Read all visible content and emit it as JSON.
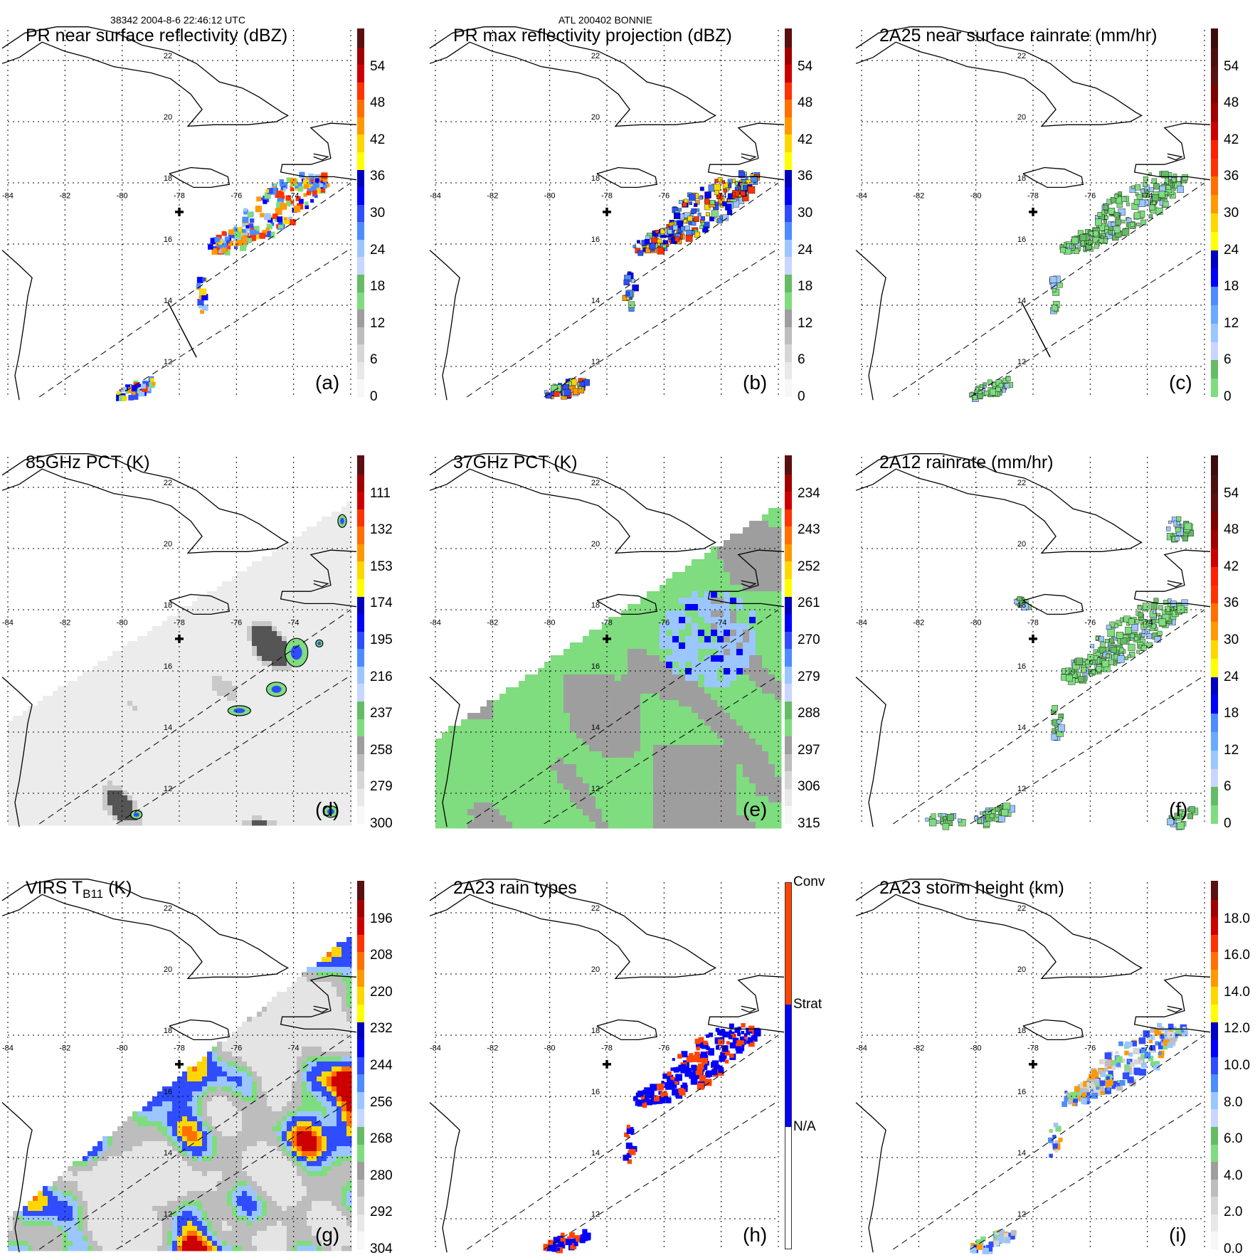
{
  "header": {
    "orbit_time": "38342 2004-8-6 22:46:12 UTC",
    "storm": "ATL 200402 BONNIE"
  },
  "grid": {
    "lon_labels": [
      "-84",
      "-82",
      "-80",
      "-78",
      "-76",
      "-74"
    ],
    "lon_values": [
      -84,
      -82,
      -80,
      -78,
      -76,
      -74
    ],
    "lat_labels": [
      "22",
      "20",
      "18",
      "16",
      "14",
      "12"
    ],
    "lat_values": [
      22,
      20,
      18,
      16,
      14,
      12
    ],
    "lon_range": [
      -84,
      -72
    ],
    "lat_range": [
      11,
      23
    ]
  },
  "panels": [
    {
      "id": "a",
      "title": "PR near surface reflectivity (dBZ)",
      "label": "(a)",
      "type": "pr",
      "cb_range": [
        0,
        60
      ],
      "cb_ticks": [
        "0",
        "6",
        "12",
        "18",
        "24",
        "30",
        "36",
        "42",
        "48",
        "54"
      ],
      "cb_tick_values": [
        0,
        6,
        12,
        18,
        24,
        30,
        36,
        42,
        48,
        54
      ],
      "cb_colors": [
        "#f7f7f7",
        "#e8e8e8",
        "#d6d6d6",
        "#bdbdbd",
        "#9e9e9e",
        "#7fdc7f",
        "#66bb66",
        "#c8d6ff",
        "#9cc6ff",
        "#4d8cff",
        "#2f4dff",
        "#0000ff",
        "#0000c0",
        "#ffff00",
        "#ffd700",
        "#ff9900",
        "#ff7000",
        "#ff3300",
        "#cc0000",
        "#a00000",
        "#5a1010"
      ]
    },
    {
      "id": "b",
      "title": "PR max reflectivity projection (dBZ)",
      "label": "(b)",
      "type": "pr",
      "cb_range": [
        0,
        60
      ],
      "cb_ticks": [
        "0",
        "6",
        "12",
        "18",
        "24",
        "30",
        "36",
        "42",
        "48",
        "54"
      ],
      "cb_tick_values": [
        0,
        6,
        12,
        18,
        24,
        30,
        36,
        42,
        48,
        54
      ],
      "cb_colors": [
        "#f7f7f7",
        "#e8e8e8",
        "#d6d6d6",
        "#bdbdbd",
        "#9e9e9e",
        "#7fdc7f",
        "#66bb66",
        "#c8d6ff",
        "#9cc6ff",
        "#4d8cff",
        "#2f4dff",
        "#0000ff",
        "#0000c0",
        "#ffff00",
        "#ffd700",
        "#ff9900",
        "#ff7000",
        "#ff3300",
        "#cc0000",
        "#a00000",
        "#5a1010"
      ]
    },
    {
      "id": "c",
      "title": "2A25 near surface rainrate (mm/hr)",
      "label": "(c)",
      "type": "rate",
      "cb_range": [
        0,
        60
      ],
      "cb_ticks": [
        "0",
        "6",
        "12",
        "18",
        "24",
        "30",
        "36",
        "42",
        "48",
        "54"
      ],
      "cb_tick_values": [
        0,
        6,
        12,
        18,
        24,
        30,
        36,
        42,
        48,
        54
      ],
      "cb_colors": [
        "#7fdc7f",
        "#66bb66",
        "#c8d6ff",
        "#9cc6ff",
        "#6aaaff",
        "#4d8cff",
        "#0000ff",
        "#0000c0",
        "#ffff00",
        "#ffd700",
        "#ff9900",
        "#ff7000",
        "#ff3300",
        "#ff2000",
        "#cc0000",
        "#a00000",
        "#800000",
        "#5a1010",
        "#4a1010",
        "#3a0c0c"
      ]
    },
    {
      "id": "d",
      "title": "85GHz PCT (K)",
      "label": "(d)",
      "type": "pct85",
      "cb_range": [
        300,
        90
      ],
      "cb_ticks": [
        "111",
        "132",
        "153",
        "174",
        "195",
        "216",
        "237",
        "258",
        "279",
        "300"
      ],
      "cb_tick_values": [
        111,
        132,
        153,
        174,
        195,
        216,
        237,
        258,
        279,
        300
      ],
      "cb_colors": [
        "#f7f7f7",
        "#e8e8e8",
        "#d6d6d6",
        "#bdbdbd",
        "#9e9e9e",
        "#7fdc7f",
        "#66bb66",
        "#c8d6ff",
        "#9cc6ff",
        "#4d8cff",
        "#2f4dff",
        "#0000ff",
        "#0000c0",
        "#ffff00",
        "#ffd700",
        "#ff9900",
        "#ff7000",
        "#ff3300",
        "#cc0000",
        "#a00000",
        "#5a1010"
      ]
    },
    {
      "id": "e",
      "title": "37GHz PCT (K)",
      "label": "(e)",
      "type": "pct37",
      "cb_range": [
        315,
        225
      ],
      "cb_ticks": [
        "234",
        "243",
        "252",
        "261",
        "270",
        "279",
        "288",
        "297",
        "306",
        "315"
      ],
      "cb_tick_values": [
        234,
        243,
        252,
        261,
        270,
        279,
        288,
        297,
        306,
        315
      ],
      "cb_colors": [
        "#f7f7f7",
        "#e8e8e8",
        "#d6d6d6",
        "#bdbdbd",
        "#9e9e9e",
        "#7fdc7f",
        "#66bb66",
        "#c8d6ff",
        "#9cc6ff",
        "#4d8cff",
        "#2f4dff",
        "#0000ff",
        "#0000c0",
        "#ffff00",
        "#ffd700",
        "#ff9900",
        "#ff7000",
        "#ff3300",
        "#cc0000",
        "#a00000",
        "#5a1010"
      ]
    },
    {
      "id": "f",
      "title": "2A12 rainrate (mm/hr)",
      "label": "(f)",
      "type": "rate2",
      "cb_range": [
        0,
        60
      ],
      "cb_ticks": [
        "0",
        "6",
        "12",
        "18",
        "24",
        "30",
        "36",
        "42",
        "48",
        "54"
      ],
      "cb_tick_values": [
        0,
        6,
        12,
        18,
        24,
        30,
        36,
        42,
        48,
        54
      ],
      "cb_colors": [
        "#7fdc7f",
        "#66bb66",
        "#c8d6ff",
        "#9cc6ff",
        "#6aaaff",
        "#4d8cff",
        "#0000ff",
        "#0000c0",
        "#ffff00",
        "#ffd700",
        "#ff9900",
        "#ff7000",
        "#ff3300",
        "#ff2000",
        "#cc0000",
        "#a00000",
        "#800000",
        "#5a1010",
        "#4a1010",
        "#3a0c0c"
      ]
    },
    {
      "id": "g",
      "title": "VIRS T",
      "title_sub": "B11",
      "title_suffix": " (K)",
      "label": "(g)",
      "type": "virs",
      "cb_range": [
        304,
        184
      ],
      "cb_ticks": [
        "196",
        "208",
        "220",
        "232",
        "244",
        "256",
        "268",
        "280",
        "292",
        "304"
      ],
      "cb_tick_values": [
        196,
        208,
        220,
        232,
        244,
        256,
        268,
        280,
        292,
        304
      ],
      "cb_colors": [
        "#f7f7f7",
        "#e8e8e8",
        "#d6d6d6",
        "#bdbdbd",
        "#9e9e9e",
        "#7fdc7f",
        "#66bb66",
        "#c8d6ff",
        "#9cc6ff",
        "#4d8cff",
        "#2f4dff",
        "#0000ff",
        "#0000c0",
        "#ffff00",
        "#ffd700",
        "#ff9900",
        "#ff7000",
        "#ff3300",
        "#cc0000",
        "#a00000",
        "#5a1010"
      ]
    },
    {
      "id": "h",
      "title": "2A23 rain types",
      "label": "(h)",
      "type": "types",
      "cb_categories": [
        "N/A",
        "Strat",
        "Conv"
      ],
      "cb_cat_colors": [
        "#ffffff",
        "#0000ff",
        "#ff4500"
      ]
    },
    {
      "id": "i",
      "title": "2A23 storm height (km)",
      "label": "(i)",
      "type": "height",
      "cb_range": [
        0,
        20
      ],
      "cb_ticks": [
        "0.0",
        "2.0",
        "4.0",
        "6.0",
        "8.0",
        "10.0",
        "12.0",
        "14.0",
        "16.0",
        "18.0"
      ],
      "cb_tick_values": [
        0,
        2,
        4,
        6,
        8,
        10,
        12,
        14,
        16,
        18
      ],
      "cb_colors": [
        "#f7f7f7",
        "#e8e8e8",
        "#d6d6d6",
        "#bdbdbd",
        "#9e9e9e",
        "#7fdc7f",
        "#66bb66",
        "#c8d6ff",
        "#9cc6ff",
        "#4d8cff",
        "#2f4dff",
        "#0000ff",
        "#0000c0",
        "#ffff00",
        "#ffd700",
        "#ff9900",
        "#ff7000",
        "#ff3300",
        "#cc0000",
        "#a00000",
        "#5a1010"
      ]
    }
  ]
}
